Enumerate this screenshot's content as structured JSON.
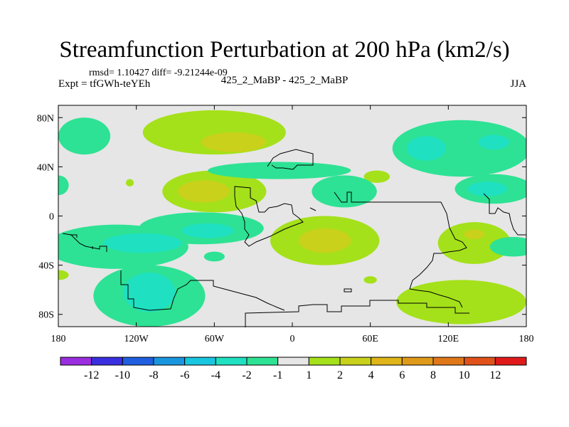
{
  "header": {
    "title": "Streamfunction Perturbation at 200 hPa (km2/s)",
    "stats": "rmsd= 1.10427  diff= -9.21244e-09",
    "expt": "Expt = tfGWh-teYEh",
    "center": "425_2_MaBP - 425_2_MaBP",
    "season": "JJA"
  },
  "chart_data": {
    "type": "heatmap",
    "title": "Streamfunction Perturbation at 200 hPa (km2/s)",
    "xlabel": "",
    "ylabel": "",
    "xlim": [
      -180,
      180
    ],
    "ylim": [
      -90,
      90
    ],
    "x_ticks": [
      {
        "value": -180,
        "label": "180"
      },
      {
        "value": -120,
        "label": "120W"
      },
      {
        "value": -60,
        "label": "60W"
      },
      {
        "value": 0,
        "label": "0"
      },
      {
        "value": 60,
        "label": "60E"
      },
      {
        "value": 120,
        "label": "120E"
      },
      {
        "value": 180,
        "label": "180"
      }
    ],
    "y_ticks": [
      {
        "value": 80,
        "label": "80N"
      },
      {
        "value": 40,
        "label": "40N"
      },
      {
        "value": 0,
        "label": "0"
      },
      {
        "value": -40,
        "label": "40S"
      },
      {
        "value": -80,
        "label": "80S"
      }
    ],
    "colorbar": {
      "colors": [
        "#9b2de0",
        "#3a2fe0",
        "#1f5fe0",
        "#1a96e0",
        "#19c6e0",
        "#1fe0c0",
        "#2de294",
        "#e6e6e6",
        "#a4e11a",
        "#c9d11a",
        "#e0b51a",
        "#e09a1a",
        "#e0781a",
        "#e0521a",
        "#e01a1a"
      ],
      "labels": [
        "-12",
        "-10",
        "-8",
        "-6",
        "-4",
        "-2",
        "-1",
        "1",
        "2",
        "4",
        "6",
        "8",
        "10",
        "12"
      ]
    },
    "anomalies": [
      {
        "lon": -160,
        "lat": 65,
        "rx": 20,
        "ry": 15,
        "level": -1
      },
      {
        "lon": -180,
        "lat": 25,
        "rx": 8,
        "ry": 8,
        "level": -1
      },
      {
        "lon": -125,
        "lat": 27,
        "rx": 3,
        "ry": 3,
        "level": 1
      },
      {
        "lon": -60,
        "lat": 68,
        "rx": 55,
        "ry": 18,
        "level": 1
      },
      {
        "lon": -45,
        "lat": 60,
        "rx": 25,
        "ry": 8,
        "level": 2
      },
      {
        "lon": -60,
        "lat": 20,
        "rx": 40,
        "ry": 17,
        "level": 1
      },
      {
        "lon": -68,
        "lat": 20,
        "rx": 20,
        "ry": 9,
        "level": 2
      },
      {
        "lon": -10,
        "lat": 37,
        "rx": 55,
        "ry": 7,
        "level": -1
      },
      {
        "lon": 65,
        "lat": 32,
        "rx": 10,
        "ry": 5,
        "level": 1
      },
      {
        "lon": 40,
        "lat": 20,
        "rx": 25,
        "ry": 13,
        "level": -1
      },
      {
        "lon": 130,
        "lat": 55,
        "rx": 53,
        "ry": 23,
        "level": -1
      },
      {
        "lon": 103,
        "lat": 55,
        "rx": 15,
        "ry": 10,
        "level": -2
      },
      {
        "lon": 155,
        "lat": 60,
        "rx": 12,
        "ry": 6,
        "level": -2
      },
      {
        "lon": 155,
        "lat": 22,
        "rx": 30,
        "ry": 12,
        "level": -1
      },
      {
        "lon": 150,
        "lat": 22,
        "rx": 15,
        "ry": 6,
        "level": -2
      },
      {
        "lon": 25,
        "lat": -20,
        "rx": 42,
        "ry": 20,
        "level": 1
      },
      {
        "lon": 25,
        "lat": -20,
        "rx": 20,
        "ry": 10,
        "level": 2
      },
      {
        "lon": -70,
        "lat": -10,
        "rx": 48,
        "ry": 13,
        "level": -1
      },
      {
        "lon": -65,
        "lat": -12,
        "rx": 20,
        "ry": 6,
        "level": -2
      },
      {
        "lon": -135,
        "lat": -25,
        "rx": 55,
        "ry": 18,
        "level": -1
      },
      {
        "lon": -115,
        "lat": -22,
        "rx": 30,
        "ry": 8,
        "level": -2
      },
      {
        "lon": -60,
        "lat": -33,
        "rx": 8,
        "ry": 4,
        "level": -1
      },
      {
        "lon": -180,
        "lat": -48,
        "rx": 8,
        "ry": 4,
        "level": 1
      },
      {
        "lon": -110,
        "lat": -65,
        "rx": 43,
        "ry": 25,
        "level": -1
      },
      {
        "lon": -110,
        "lat": -62,
        "rx": 20,
        "ry": 16,
        "level": -2
      },
      {
        "lon": 140,
        "lat": -22,
        "rx": 28,
        "ry": 17,
        "level": 1
      },
      {
        "lon": 140,
        "lat": -15,
        "rx": 8,
        "ry": 4,
        "level": 2
      },
      {
        "lon": 170,
        "lat": -25,
        "rx": 18,
        "ry": 8,
        "level": -1
      },
      {
        "lon": 130,
        "lat": -70,
        "rx": 50,
        "ry": 18,
        "level": 1
      },
      {
        "lon": 60,
        "lat": -52,
        "rx": 5,
        "ry": 3,
        "level": 1
      }
    ]
  }
}
